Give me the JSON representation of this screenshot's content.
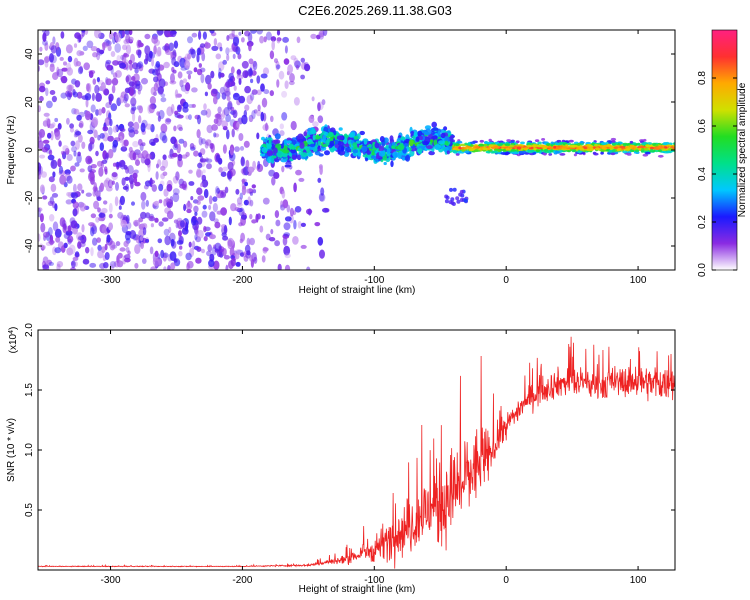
{
  "figure_title": "C2E6.2025.269.11.38.G03",
  "colors": {
    "snr_line": "#ee2222",
    "spectrogram_sparse": "#7b2ff0",
    "colormap": [
      "#ffffff",
      "#8a2be2",
      "#1a1aff",
      "#00c8ff",
      "#00e08a",
      "#22dd22",
      "#d0e000",
      "#ffaa00",
      "#ff3030",
      "#ff2080"
    ]
  },
  "chart_data": [
    {
      "type": "heatmap",
      "title": "C2E6.2025.269.11.38.G03",
      "xlabel": "Height of straight line (km)",
      "ylabel": "Frequency (Hz)",
      "xlim": [
        -355,
        128
      ],
      "ylim": [
        -50,
        50
      ],
      "xticks": [
        -300,
        -200,
        -100,
        0,
        100
      ],
      "xtick_labels": [
        "-300",
        "-200",
        "-100",
        "0",
        "100"
      ],
      "yticks": [
        -40,
        -20,
        0,
        20,
        40
      ],
      "ytick_labels": [
        "-40",
        "-20",
        "0",
        "20",
        "40"
      ],
      "colorbar": {
        "label": "Normalized spectral amplitude",
        "range": [
          0,
          1
        ],
        "ticks": [
          0.0,
          0.2,
          0.4,
          0.6,
          0.8
        ],
        "tick_labels": [
          "0.0",
          "0.2",
          "0.4",
          "0.6",
          "0.8"
        ]
      },
      "regions": [
        {
          "name": "noise",
          "x_range": [
            -355,
            -135
          ],
          "freq_range": [
            -50,
            50
          ],
          "amplitude": 0.15
        },
        {
          "name": "signal_onset",
          "x_range": [
            -185,
            -40
          ],
          "freq_center": 2,
          "freq_width": 8,
          "amplitude": 0.45
        },
        {
          "name": "carrier_tone",
          "x_range": [
            -40,
            128
          ],
          "freq_center": 1,
          "freq_width": 3,
          "amplitude": 0.95
        },
        {
          "name": "side_lobe",
          "x_range": [
            -48,
            -30
          ],
          "freq_center": -20,
          "freq_width": 6,
          "amplitude": 0.1
        }
      ]
    },
    {
      "type": "line",
      "xlabel": "Height of straight line (km)",
      "ylabel": "SNR (10 * v/v)",
      "y_multiplier_label": "(x10",
      "y_multiplier_exp": "4",
      "y_multiplier_close": ")",
      "xlim": [
        -355,
        128
      ],
      "ylim": [
        0,
        20000
      ],
      "xticks": [
        -300,
        -200,
        -100,
        0,
        100
      ],
      "xtick_labels": [
        "-300",
        "-200",
        "-100",
        "0",
        "100"
      ],
      "yticks": [
        5000,
        10000,
        15000,
        20000
      ],
      "ytick_labels": [
        "0.5",
        "1.0",
        "1.5",
        "2.0"
      ],
      "series": [
        {
          "name": "SNR",
          "x": [
            -355,
            -200,
            -150,
            -120,
            -100,
            -90,
            -80,
            -70,
            -60,
            -50,
            -40,
            -30,
            -20,
            -15,
            -10,
            0,
            10,
            20,
            30,
            40,
            50,
            60,
            70,
            80,
            90,
            100,
            110,
            120,
            128
          ],
          "y": [
            300,
            300,
            400,
            900,
            1800,
            2500,
            3200,
            4000,
            4800,
            5500,
            6500,
            7600,
            9000,
            9200,
            10000,
            12000,
            13500,
            14500,
            15200,
            15600,
            15700,
            15500,
            15400,
            15600,
            15700,
            15800,
            15600,
            15500,
            15600
          ],
          "noise": [
            30,
            30,
            80,
            400,
            1200,
            1600,
            2000,
            2500,
            3000,
            3500,
            3800,
            3600,
            3000,
            2500,
            1400,
            1000,
            1000,
            1100,
            1200,
            1200,
            1200,
            1200,
            1200,
            1300,
            1300,
            1400,
            1400,
            1400,
            1400
          ]
        }
      ]
    }
  ]
}
